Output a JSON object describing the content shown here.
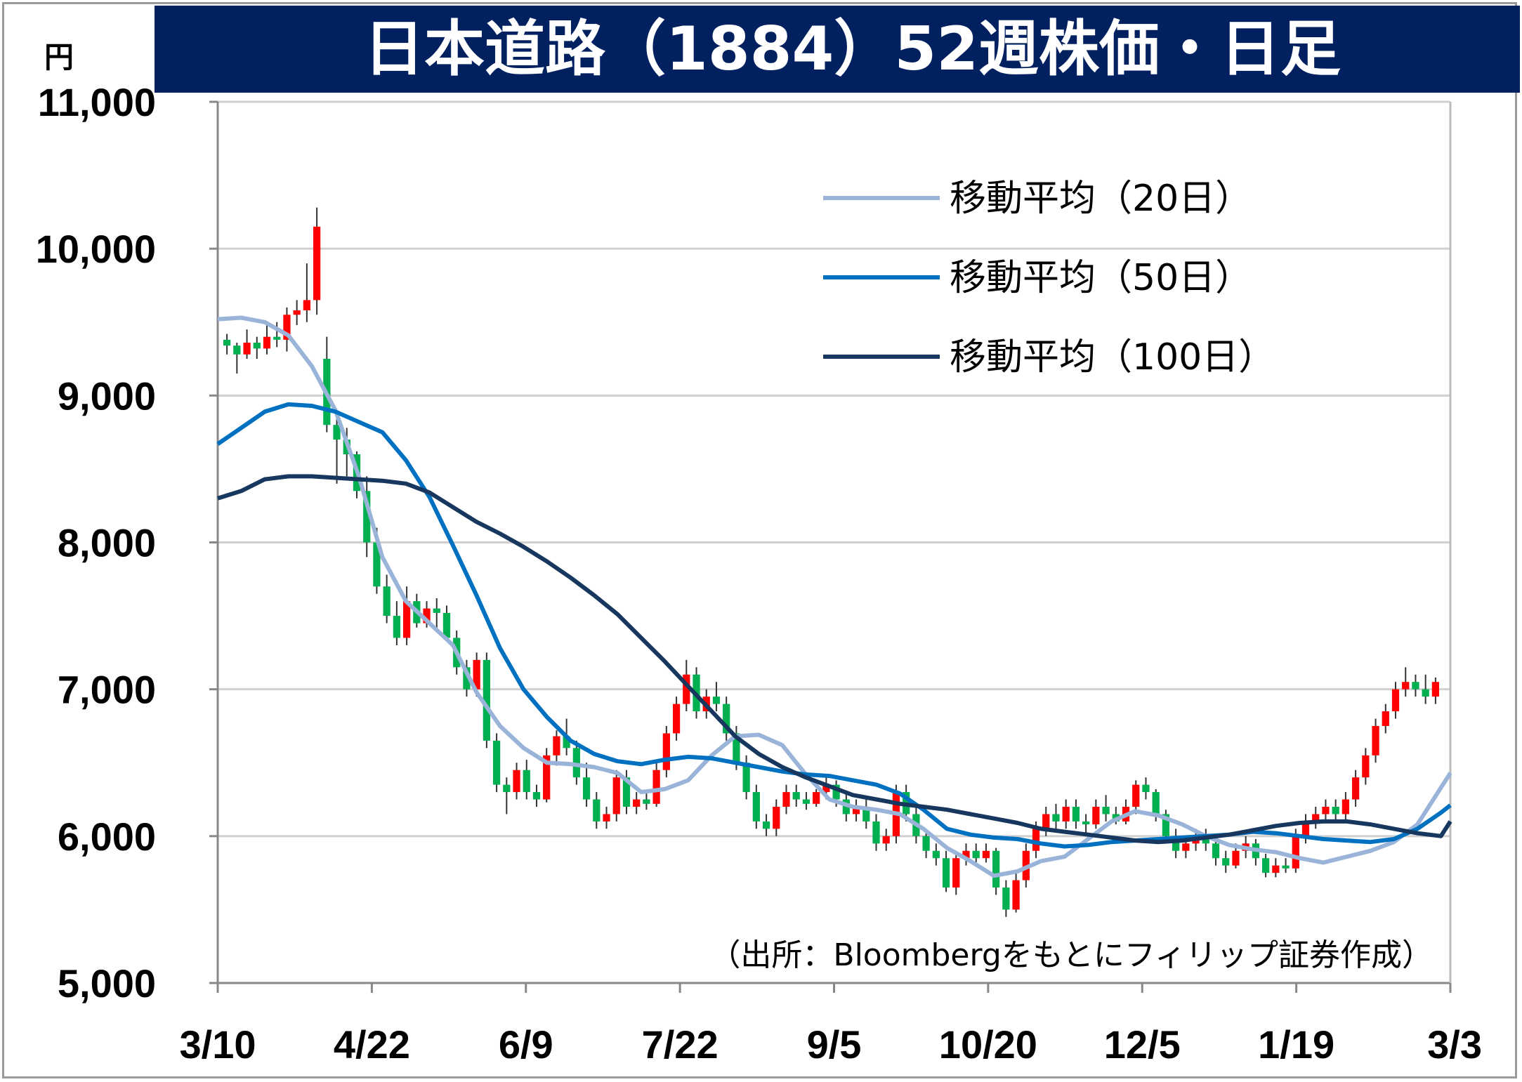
{
  "title": "日本道路（1884）52週株価・日足",
  "unit_label": "円",
  "source": "（出所：Bloombergをもとにフィリップ証券作成）",
  "colors": {
    "title_bg": "#002060",
    "up": "#ff0000",
    "down": "#00b050",
    "ma20": "#9ab4d9",
    "ma50": "#0070c0",
    "ma100": "#17375e",
    "grid": "#d0d0d0"
  },
  "chart_data": {
    "type": "candlestick",
    "ylim": [
      5000,
      11000
    ],
    "yticks": [
      "5,000",
      "6,000",
      "7,000",
      "8,000",
      "9,000",
      "10,000",
      "11,000"
    ],
    "x_tick_labels": [
      "3/10",
      "4/22",
      "6/9",
      "7/22",
      "9/5",
      "10/20",
      "12/5",
      "1/19",
      "3/3"
    ],
    "grid": true,
    "legend_position": "top-right",
    "series": [
      {
        "name": "移動平均（20日）",
        "color_key": "ma20",
        "points": [
          [
            0,
            9520
          ],
          [
            5,
            9530
          ],
          [
            10,
            9500
          ],
          [
            15,
            9410
          ],
          [
            20,
            9200
          ],
          [
            25,
            8900
          ],
          [
            30,
            8450
          ],
          [
            35,
            7900
          ],
          [
            40,
            7600
          ],
          [
            45,
            7450
          ],
          [
            50,
            7300
          ],
          [
            55,
            6980
          ],
          [
            60,
            6750
          ],
          [
            65,
            6600
          ],
          [
            70,
            6500
          ],
          [
            75,
            6490
          ],
          [
            80,
            6470
          ],
          [
            85,
            6430
          ],
          [
            90,
            6300
          ],
          [
            95,
            6320
          ],
          [
            100,
            6380
          ],
          [
            105,
            6550
          ],
          [
            110,
            6680
          ],
          [
            115,
            6690
          ],
          [
            120,
            6620
          ],
          [
            125,
            6420
          ],
          [
            130,
            6250
          ],
          [
            135,
            6200
          ],
          [
            140,
            6180
          ],
          [
            145,
            6150
          ],
          [
            150,
            6050
          ],
          [
            155,
            5920
          ],
          [
            160,
            5830
          ],
          [
            165,
            5730
          ],
          [
            170,
            5760
          ],
          [
            175,
            5830
          ],
          [
            180,
            5860
          ],
          [
            185,
            5980
          ],
          [
            190,
            6100
          ],
          [
            195,
            6170
          ],
          [
            200,
            6140
          ],
          [
            205,
            6080
          ],
          [
            210,
            6000
          ],
          [
            215,
            5940
          ],
          [
            220,
            5910
          ],
          [
            225,
            5890
          ],
          [
            230,
            5850
          ],
          [
            235,
            5820
          ],
          [
            240,
            5860
          ],
          [
            245,
            5900
          ],
          [
            250,
            5960
          ],
          [
            255,
            6080
          ],
          [
            260,
            6330
          ],
          [
            262,
            6430
          ]
        ]
      },
      {
        "name": "移動平均（50日）",
        "color_key": "ma50",
        "points": [
          [
            0,
            8670
          ],
          [
            5,
            8780
          ],
          [
            10,
            8890
          ],
          [
            15,
            8940
          ],
          [
            20,
            8930
          ],
          [
            25,
            8890
          ],
          [
            30,
            8820
          ],
          [
            35,
            8750
          ],
          [
            40,
            8560
          ],
          [
            45,
            8310
          ],
          [
            50,
            7980
          ],
          [
            55,
            7640
          ],
          [
            60,
            7280
          ],
          [
            65,
            7000
          ],
          [
            70,
            6810
          ],
          [
            75,
            6650
          ],
          [
            80,
            6560
          ],
          [
            85,
            6510
          ],
          [
            90,
            6490
          ],
          [
            95,
            6520
          ],
          [
            100,
            6540
          ],
          [
            105,
            6530
          ],
          [
            110,
            6500
          ],
          [
            115,
            6470
          ],
          [
            120,
            6440
          ],
          [
            125,
            6420
          ],
          [
            130,
            6410
          ],
          [
            135,
            6380
          ],
          [
            140,
            6350
          ],
          [
            145,
            6290
          ],
          [
            150,
            6180
          ],
          [
            155,
            6050
          ],
          [
            160,
            6010
          ],
          [
            165,
            5990
          ],
          [
            170,
            5980
          ],
          [
            175,
            5950
          ],
          [
            180,
            5930
          ],
          [
            185,
            5940
          ],
          [
            190,
            5960
          ],
          [
            195,
            5970
          ],
          [
            200,
            5980
          ],
          [
            205,
            5990
          ],
          [
            210,
            6000
          ],
          [
            215,
            6010
          ],
          [
            220,
            6030
          ],
          [
            225,
            6020
          ],
          [
            230,
            6000
          ],
          [
            235,
            5980
          ],
          [
            240,
            5970
          ],
          [
            245,
            5960
          ],
          [
            250,
            5980
          ],
          [
            255,
            6050
          ],
          [
            260,
            6160
          ],
          [
            262,
            6210
          ]
        ]
      },
      {
        "name": "移動平均（100日）",
        "color_key": "ma100",
        "points": [
          [
            0,
            8300
          ],
          [
            5,
            8350
          ],
          [
            10,
            8430
          ],
          [
            15,
            8450
          ],
          [
            20,
            8450
          ],
          [
            25,
            8440
          ],
          [
            30,
            8430
          ],
          [
            35,
            8420
          ],
          [
            40,
            8400
          ],
          [
            45,
            8340
          ],
          [
            50,
            8240
          ],
          [
            55,
            8140
          ],
          [
            60,
            8060
          ],
          [
            65,
            7970
          ],
          [
            70,
            7870
          ],
          [
            75,
            7760
          ],
          [
            80,
            7640
          ],
          [
            85,
            7510
          ],
          [
            90,
            7350
          ],
          [
            95,
            7190
          ],
          [
            100,
            7020
          ],
          [
            105,
            6850
          ],
          [
            110,
            6680
          ],
          [
            115,
            6560
          ],
          [
            120,
            6470
          ],
          [
            125,
            6400
          ],
          [
            130,
            6340
          ],
          [
            135,
            6280
          ],
          [
            140,
            6250
          ],
          [
            145,
            6220
          ],
          [
            150,
            6200
          ],
          [
            155,
            6180
          ],
          [
            160,
            6150
          ],
          [
            165,
            6120
          ],
          [
            170,
            6090
          ],
          [
            175,
            6050
          ],
          [
            180,
            6030
          ],
          [
            185,
            6010
          ],
          [
            190,
            5990
          ],
          [
            195,
            5970
          ],
          [
            200,
            5960
          ],
          [
            205,
            5970
          ],
          [
            210,
            5990
          ],
          [
            215,
            6010
          ],
          [
            220,
            6040
          ],
          [
            225,
            6070
          ],
          [
            230,
            6090
          ],
          [
            235,
            6100
          ],
          [
            240,
            6100
          ],
          [
            245,
            6080
          ],
          [
            250,
            6050
          ],
          [
            255,
            6020
          ],
          [
            260,
            6000
          ],
          [
            262,
            6100
          ]
        ]
      }
    ],
    "candles": [
      [
        9380,
        9420,
        9280,
        9340
      ],
      [
        9340,
        9360,
        9150,
        9280
      ],
      [
        9280,
        9450,
        9250,
        9360
      ],
      [
        9360,
        9400,
        9250,
        9320
      ],
      [
        9320,
        9480,
        9280,
        9400
      ],
      [
        9400,
        9500,
        9330,
        9380
      ],
      [
        9380,
        9600,
        9300,
        9550
      ],
      [
        9550,
        9650,
        9480,
        9580
      ],
      [
        9580,
        9900,
        9500,
        9650
      ],
      [
        9650,
        10280,
        9550,
        10150
      ],
      [
        9250,
        9400,
        8750,
        8800
      ],
      [
        8800,
        8850,
        8400,
        8700
      ],
      [
        8700,
        8780,
        8450,
        8600
      ],
      [
        8600,
        8620,
        8300,
        8350
      ],
      [
        8350,
        8450,
        7900,
        8000
      ],
      [
        8000,
        8100,
        7650,
        7700
      ],
      [
        7700,
        7780,
        7450,
        7500
      ],
      [
        7500,
        7600,
        7300,
        7350
      ],
      [
        7350,
        7700,
        7300,
        7600
      ],
      [
        7600,
        7650,
        7420,
        7450
      ],
      [
        7450,
        7600,
        7420,
        7550
      ],
      [
        7550,
        7620,
        7400,
        7520
      ],
      [
        7520,
        7570,
        7330,
        7350
      ],
      [
        7350,
        7400,
        7100,
        7150
      ],
      [
        7150,
        7200,
        6950,
        7000
      ],
      [
        7000,
        7250,
        6950,
        7200
      ],
      [
        7200,
        7250,
        6600,
        6650
      ],
      [
        6650,
        6700,
        6300,
        6350
      ],
      [
        6350,
        6400,
        6150,
        6300
      ],
      [
        6300,
        6500,
        6250,
        6450
      ],
      [
        6450,
        6520,
        6250,
        6300
      ],
      [
        6300,
        6350,
        6200,
        6250
      ],
      [
        6250,
        6600,
        6230,
        6550
      ],
      [
        6550,
        6720,
        6480,
        6680
      ],
      [
        6680,
        6800,
        6550,
        6600
      ],
      [
        6600,
        6650,
        6350,
        6400
      ],
      [
        6400,
        6500,
        6200,
        6250
      ],
      [
        6250,
        6300,
        6050,
        6100
      ],
      [
        6100,
        6200,
        6050,
        6150
      ],
      [
        6150,
        6450,
        6100,
        6400
      ],
      [
        6400,
        6450,
        6150,
        6200
      ],
      [
        6200,
        6300,
        6150,
        6250
      ],
      [
        6250,
        6300,
        6180,
        6220
      ],
      [
        6220,
        6500,
        6200,
        6450
      ],
      [
        6450,
        6750,
        6400,
        6700
      ],
      [
        6700,
        6950,
        6650,
        6900
      ],
      [
        6900,
        7200,
        6850,
        7100
      ],
      [
        7100,
        7150,
        6800,
        6850
      ],
      [
        6850,
        7000,
        6800,
        6950
      ],
      [
        6950,
        7050,
        6850,
        6900
      ],
      [
        6900,
        6950,
        6650,
        6700
      ],
      [
        6700,
        6750,
        6450,
        6500
      ],
      [
        6500,
        6550,
        6250,
        6300
      ],
      [
        6300,
        6350,
        6050,
        6100
      ],
      [
        6100,
        6150,
        6000,
        6050
      ],
      [
        6050,
        6250,
        6000,
        6200
      ],
      [
        6200,
        6350,
        6150,
        6300
      ],
      [
        6300,
        6350,
        6200,
        6250
      ],
      [
        6250,
        6300,
        6180,
        6220
      ],
      [
        6220,
        6320,
        6200,
        6300
      ],
      [
        6300,
        6400,
        6250,
        6350
      ],
      [
        6350,
        6380,
        6200,
        6250
      ],
      [
        6250,
        6300,
        6100,
        6150
      ],
      [
        6150,
        6250,
        6100,
        6200
      ],
      [
        6200,
        6250,
        6050,
        6100
      ],
      [
        6100,
        6150,
        5900,
        5950
      ],
      [
        5950,
        6050,
        5900,
        6000
      ],
      [
        6000,
        6350,
        5950,
        6300
      ],
      [
        6300,
        6350,
        6100,
        6150
      ],
      [
        6150,
        6200,
        5950,
        6000
      ],
      [
        6000,
        6050,
        5850,
        5900
      ],
      [
        5900,
        5950,
        5800,
        5850
      ],
      [
        5850,
        5900,
        5620,
        5650
      ],
      [
        5650,
        5900,
        5600,
        5850
      ],
      [
        5850,
        5950,
        5800,
        5900
      ],
      [
        5900,
        5950,
        5800,
        5850
      ],
      [
        5850,
        5950,
        5820,
        5900
      ],
      [
        5900,
        5920,
        5600,
        5650
      ],
      [
        5650,
        5700,
        5450,
        5500
      ],
      [
        5500,
        5750,
        5480,
        5700
      ],
      [
        5700,
        5950,
        5650,
        5900
      ],
      [
        5900,
        6100,
        5850,
        6050
      ],
      [
        6050,
        6200,
        6000,
        6150
      ],
      [
        6150,
        6220,
        6050,
        6100
      ],
      [
        6100,
        6250,
        6050,
        6200
      ],
      [
        6200,
        6250,
        6050,
        6100
      ],
      [
        6100,
        6150,
        6020,
        6080
      ],
      [
        6080,
        6250,
        6050,
        6200
      ],
      [
        6200,
        6280,
        6100,
        6150
      ],
      [
        6150,
        6200,
        6080,
        6100
      ],
      [
        6100,
        6250,
        6080,
        6200
      ],
      [
        6200,
        6380,
        6150,
        6350
      ],
      [
        6350,
        6400,
        6250,
        6300
      ],
      [
        6300,
        6320,
        6100,
        6150
      ],
      [
        6150,
        6180,
        5950,
        6000
      ],
      [
        6000,
        6050,
        5850,
        5900
      ],
      [
        5900,
        6000,
        5850,
        5950
      ],
      [
        5950,
        6050,
        5900,
        6000
      ],
      [
        6000,
        6050,
        5900,
        5950
      ],
      [
        5950,
        6000,
        5800,
        5850
      ],
      [
        5850,
        5900,
        5750,
        5800
      ],
      [
        5800,
        5950,
        5780,
        5900
      ],
      [
        5900,
        6000,
        5850,
        5950
      ],
      [
        5950,
        5980,
        5800,
        5850
      ],
      [
        5850,
        5880,
        5720,
        5750
      ],
      [
        5750,
        5850,
        5720,
        5800
      ],
      [
        5800,
        5850,
        5750,
        5780
      ],
      [
        5780,
        6050,
        5750,
        6000
      ],
      [
        6000,
        6150,
        5950,
        6100
      ],
      [
        6100,
        6200,
        6050,
        6150
      ],
      [
        6150,
        6250,
        6100,
        6200
      ],
      [
        6200,
        6250,
        6100,
        6150
      ],
      [
        6150,
        6300,
        6100,
        6250
      ],
      [
        6250,
        6450,
        6200,
        6400
      ],
      [
        6400,
        6600,
        6350,
        6550
      ],
      [
        6550,
        6800,
        6500,
        6750
      ],
      [
        6750,
        6900,
        6700,
        6850
      ],
      [
        6850,
        7050,
        6800,
        7000
      ],
      [
        7000,
        7150,
        6950,
        7050
      ],
      [
        7050,
        7100,
        6950,
        7000
      ],
      [
        7000,
        7100,
        6900,
        6950
      ],
      [
        6950,
        7080,
        6900,
        7050
      ]
    ],
    "candle_columns": [
      "open",
      "high",
      "low",
      "close"
    ],
    "x_range_days": [
      0,
      262
    ]
  }
}
